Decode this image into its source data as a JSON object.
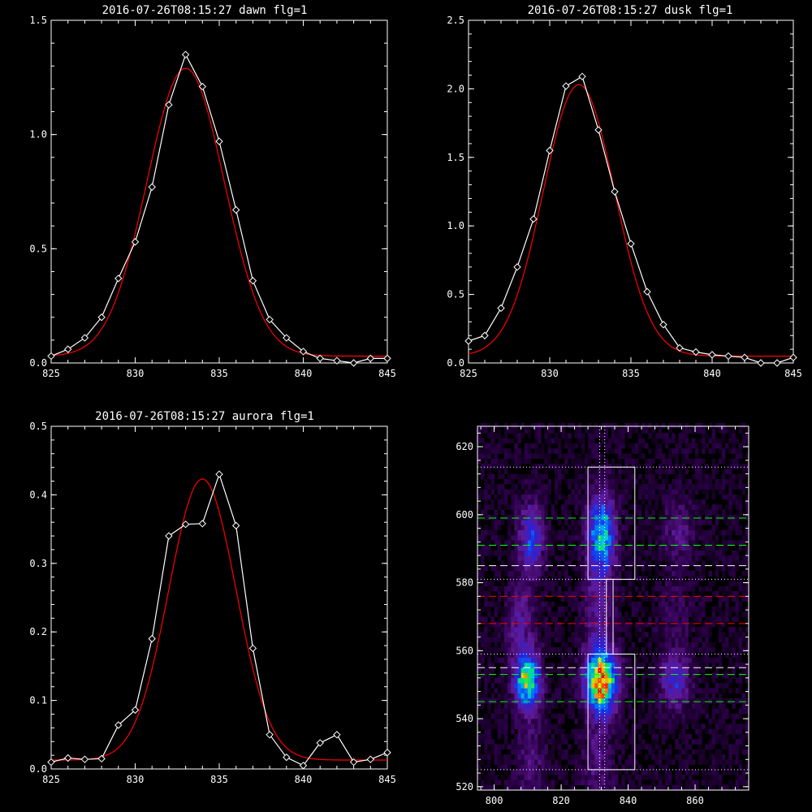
{
  "chart_data": [
    {
      "type": "line",
      "title": "2016-07-26T08:15:27 dawn flg=1",
      "xlim": [
        825,
        845
      ],
      "ylim": [
        0,
        1.5
      ],
      "xticks": [
        "825",
        "830",
        "835",
        "840",
        "845"
      ],
      "yticks": [
        "0.0",
        "0.5",
        "1.0",
        "1.5"
      ],
      "series": [
        {
          "kind": "data",
          "color": "#ffffff",
          "marker": "diamond",
          "x": [
            825,
            826,
            827,
            828,
            829,
            830,
            831,
            832,
            833,
            834,
            835,
            836,
            837,
            838,
            839,
            840,
            841,
            842,
            843,
            844,
            845
          ],
          "y": [
            0.03,
            0.06,
            0.11,
            0.2,
            0.37,
            0.53,
            0.77,
            1.13,
            1.35,
            1.21,
            0.97,
            0.67,
            0.36,
            0.19,
            0.11,
            0.05,
            0.02,
            0.01,
            0.0,
            0.02,
            0.02
          ]
        },
        {
          "kind": "fit",
          "color": "#ff0000",
          "gaussian": {
            "amplitude": 1.26,
            "center": 833.0,
            "sigma": 2.3,
            "baseline": 0.03
          }
        }
      ]
    },
    {
      "type": "line",
      "title": "2016-07-26T08:15:27 dusk flg=1",
      "xlim": [
        825,
        845
      ],
      "ylim": [
        0,
        2.5
      ],
      "xticks": [
        "825",
        "830",
        "835",
        "840",
        "845"
      ],
      "yticks": [
        "0.0",
        "0.5",
        "1.0",
        "1.5",
        "2.0",
        "2.5"
      ],
      "series": [
        {
          "kind": "data",
          "color": "#ffffff",
          "marker": "diamond",
          "x": [
            825,
            826,
            827,
            828,
            829,
            830,
            831,
            832,
            833,
            834,
            835,
            836,
            837,
            838,
            839,
            840,
            841,
            842,
            843,
            844,
            845
          ],
          "y": [
            0.16,
            0.2,
            0.4,
            0.7,
            1.05,
            1.55,
            2.02,
            2.09,
            1.7,
            1.25,
            0.87,
            0.52,
            0.28,
            0.11,
            0.08,
            0.06,
            0.05,
            0.04,
            0.0,
            0.0,
            0.04
          ]
        },
        {
          "kind": "fit",
          "color": "#ff0000",
          "gaussian": {
            "amplitude": 1.98,
            "center": 831.8,
            "sigma": 2.2,
            "baseline": 0.05
          }
        }
      ]
    },
    {
      "type": "line",
      "title": "2016-07-26T08:15:27 aurora flg=1",
      "xlim": [
        825,
        845
      ],
      "ylim": [
        0,
        0.5
      ],
      "xticks": [
        "825",
        "830",
        "835",
        "840",
        "845"
      ],
      "yticks": [
        "0.0",
        "0.1",
        "0.2",
        "0.3",
        "0.4",
        "0.5"
      ],
      "series": [
        {
          "kind": "data",
          "color": "#ffffff",
          "marker": "diamond",
          "x": [
            825,
            826,
            827,
            828,
            829,
            830,
            831,
            832,
            833,
            834,
            835,
            836,
            837,
            838,
            839,
            840,
            841,
            842,
            843,
            844,
            845
          ],
          "y": [
            0.01,
            0.016,
            0.014,
            0.015,
            0.064,
            0.086,
            0.19,
            0.34,
            0.357,
            0.358,
            0.43,
            0.355,
            0.176,
            0.05,
            0.017,
            0.005,
            0.038,
            0.05,
            0.01,
            0.014,
            0.024
          ]
        },
        {
          "kind": "fit",
          "color": "#ff0000",
          "gaussian": {
            "amplitude": 0.41,
            "center": 834.0,
            "sigma": 2.0,
            "baseline": 0.013
          }
        }
      ]
    },
    {
      "type": "heatmap",
      "title": "",
      "xlim": [
        795,
        876
      ],
      "ylim": [
        519,
        626
      ],
      "xticks": [
        "800",
        "820",
        "840",
        "860"
      ],
      "yticks": [
        "520",
        "540",
        "560",
        "580",
        "600",
        "620"
      ],
      "blobs": [
        {
          "x": 810,
          "y": 551,
          "sx": 2.5,
          "sy": 5,
          "amp": 0.72
        },
        {
          "x": 811,
          "y": 593,
          "sx": 2.5,
          "sy": 7,
          "amp": 0.35
        },
        {
          "x": 808,
          "y": 567,
          "sx": 3,
          "sy": 9,
          "amp": 0.18
        },
        {
          "x": 811,
          "y": 527,
          "sx": 3,
          "sy": 10,
          "amp": 0.12
        },
        {
          "x": 832,
          "y": 551,
          "sx": 3,
          "sy": 6,
          "amp": 1.0
        },
        {
          "x": 832,
          "y": 594,
          "sx": 2.7,
          "sy": 8,
          "amp": 0.58
        },
        {
          "x": 831,
          "y": 571,
          "sx": 3,
          "sy": 10,
          "amp": 0.15
        },
        {
          "x": 831,
          "y": 528,
          "sx": 3,
          "sy": 8,
          "amp": 0.14
        },
        {
          "x": 854,
          "y": 551,
          "sx": 3,
          "sy": 5,
          "amp": 0.28
        },
        {
          "x": 855,
          "y": 596,
          "sx": 3,
          "sy": 6,
          "amp": 0.15
        },
        {
          "x": 854,
          "y": 570,
          "sx": 3,
          "sy": 10,
          "amp": 0.08
        }
      ],
      "boxes": [
        {
          "x0": 828,
          "x1": 842,
          "y0": 581,
          "y1": 614
        },
        {
          "x0": 828,
          "x1": 842,
          "y0": 525,
          "y1": 559
        },
        {
          "x0": 833.5,
          "x1": 835.5,
          "y0": 559,
          "y1": 581
        }
      ],
      "hlines": [
        {
          "y": 614,
          "color": "#ffffff",
          "style": "dotted"
        },
        {
          "y": 599,
          "color": "#00ff00",
          "style": "dashed"
        },
        {
          "y": 591,
          "color": "#00ff00",
          "style": "dashed"
        },
        {
          "y": 585,
          "color": "#ffffff",
          "style": "dashed"
        },
        {
          "y": 581,
          "color": "#ffffff",
          "style": "dotted"
        },
        {
          "y": 576,
          "color": "#ff0000",
          "style": "dashed"
        },
        {
          "y": 568,
          "color": "#ff0000",
          "style": "dashed"
        },
        {
          "y": 559,
          "color": "#ffffff",
          "style": "dotted"
        },
        {
          "y": 555,
          "color": "#ffffff",
          "style": "dashed"
        },
        {
          "y": 553,
          "color": "#00ff00",
          "style": "dashed"
        },
        {
          "y": 545,
          "color": "#00ff00",
          "style": "dashed"
        },
        {
          "y": 525,
          "color": "#ffffff",
          "style": "dotted"
        }
      ],
      "vlines": [
        {
          "x": 831.5,
          "color": "#ffffff",
          "style": "dotted"
        },
        {
          "x": 833.0,
          "color": "#ffffff",
          "style": "dotted"
        }
      ]
    }
  ]
}
